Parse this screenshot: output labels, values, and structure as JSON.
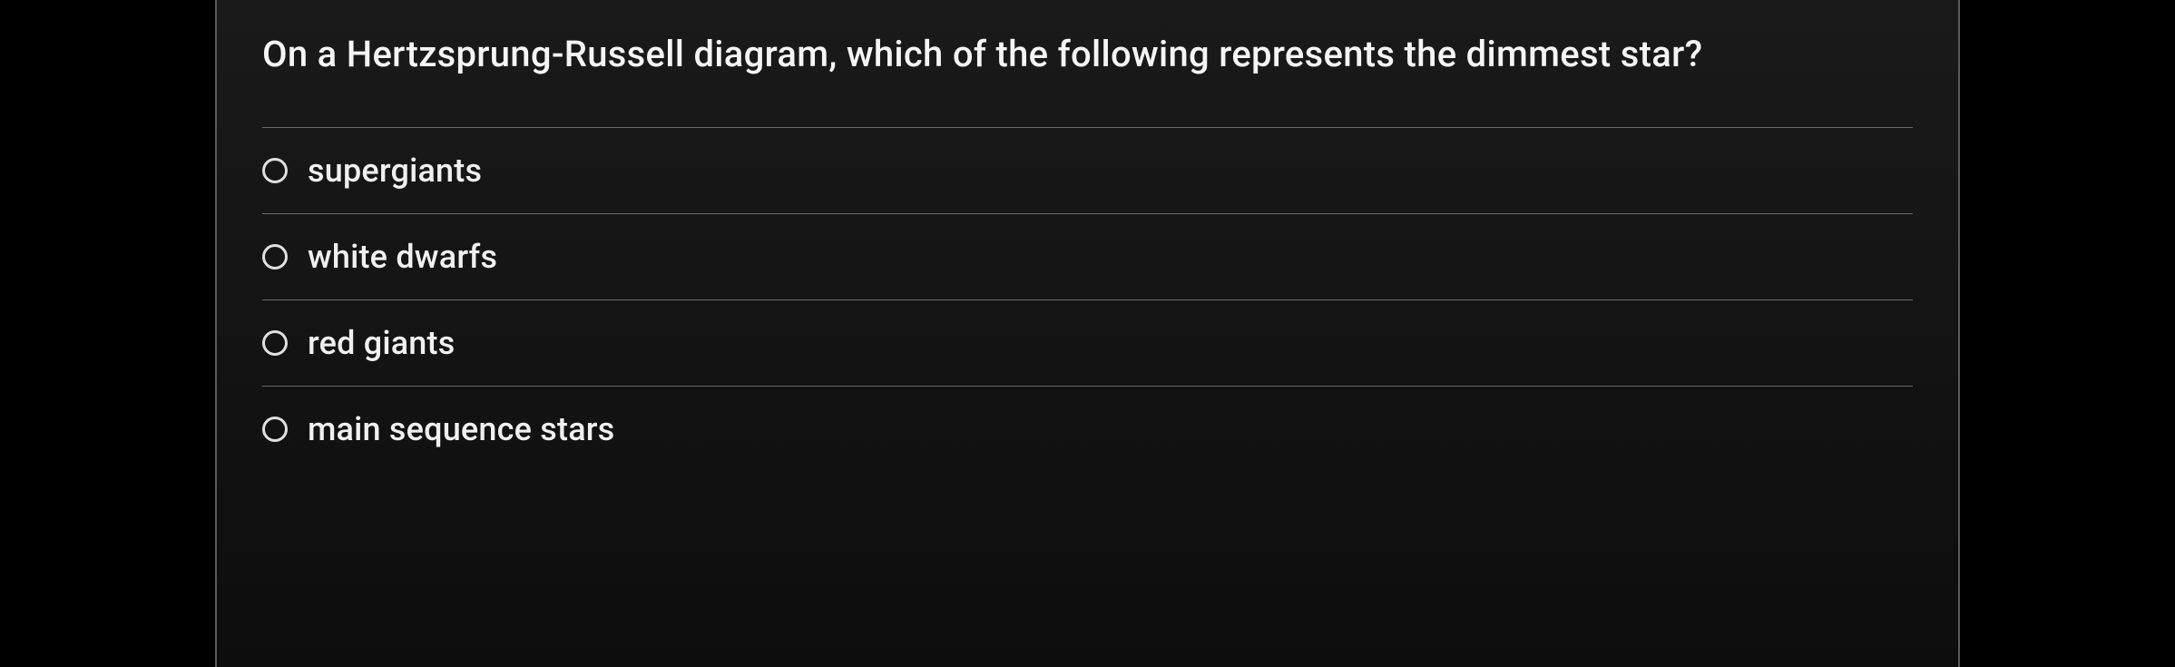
{
  "question": {
    "text": "On a Hertzsprung-Russell diagram, which of the following represents the dimmest star?"
  },
  "options": [
    {
      "label": "supergiants"
    },
    {
      "label": "white dwarfs"
    },
    {
      "label": "red giants"
    },
    {
      "label": "main sequence stars"
    }
  ],
  "styling": {
    "background_color": "#000000",
    "panel_bg_top": "#1a1a1a",
    "panel_bg_bottom": "#0d0d0d",
    "panel_border_color": "#5a5a5a",
    "divider_color": "#6a6a6a",
    "text_color": "#f5f5f5",
    "option_text_color": "#f0f0f0",
    "radio_border_color": "#e0e0e0",
    "question_fontsize": 40,
    "option_fontsize": 36
  }
}
